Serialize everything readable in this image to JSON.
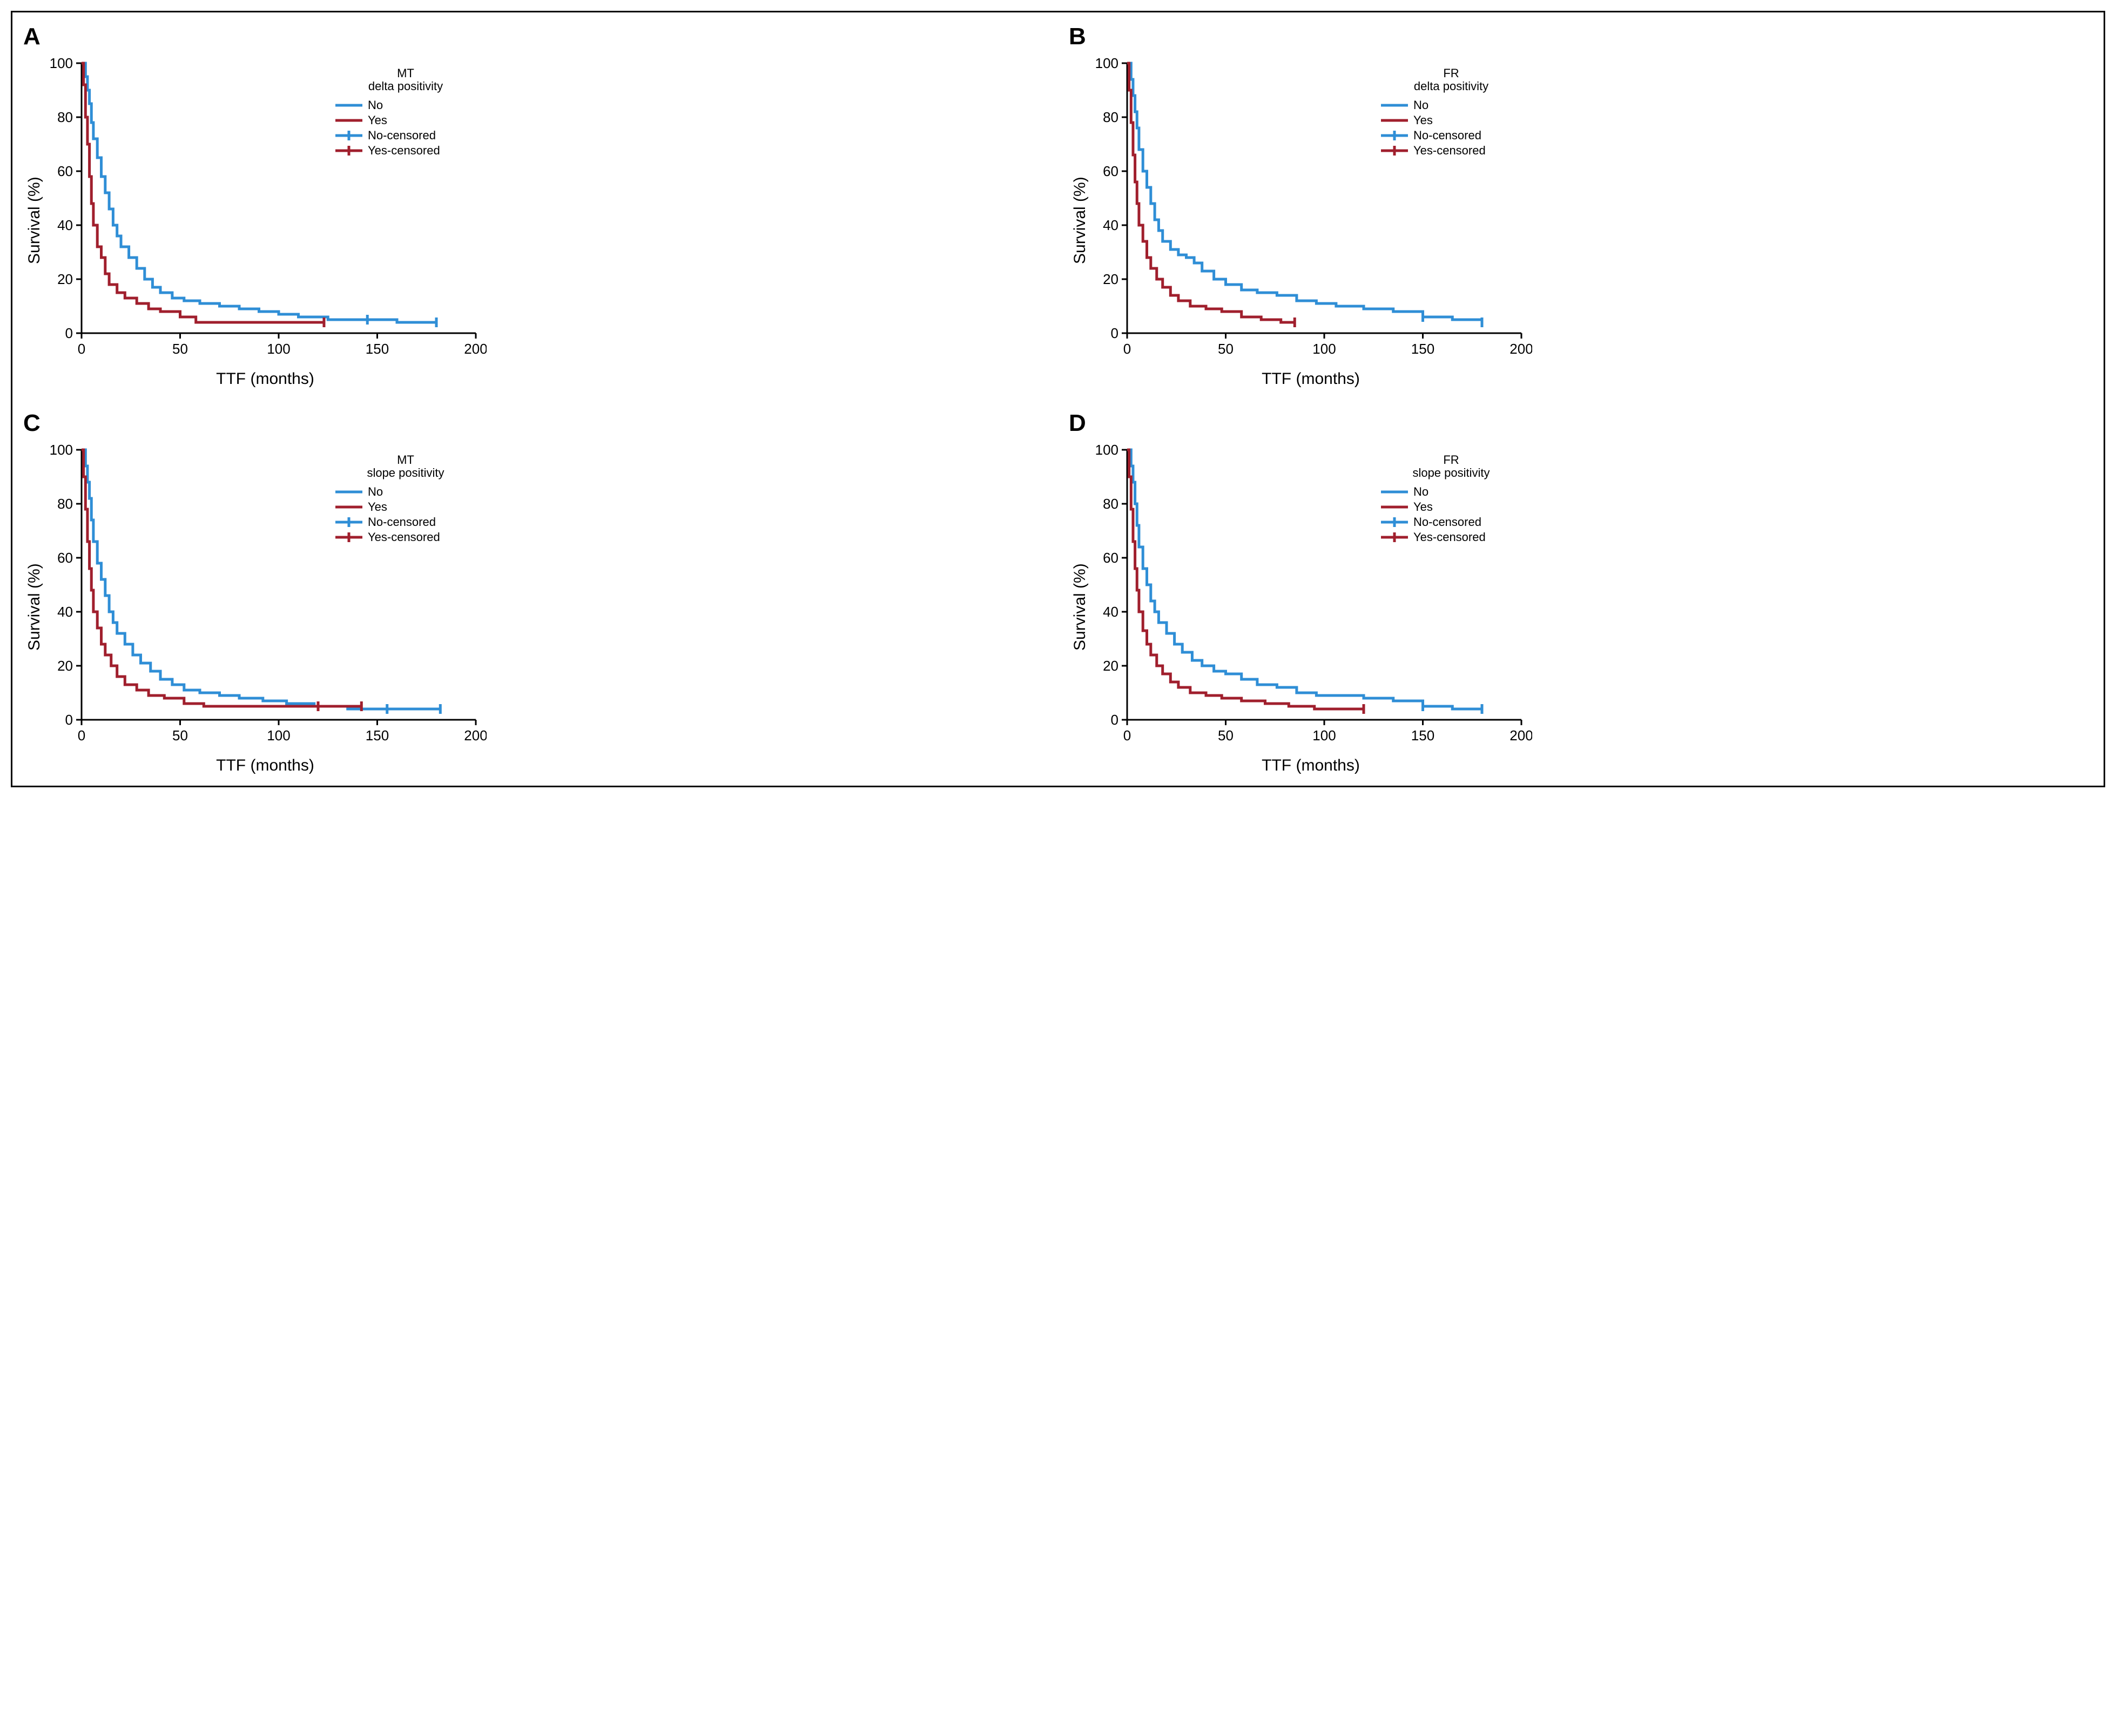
{
  "layout": {
    "grid": "2x2",
    "outer_border_color": "#000000",
    "background_color": "#ffffff"
  },
  "colors": {
    "no": "#2f8ed6",
    "yes": "#a01f2d",
    "axis": "#000000"
  },
  "axis": {
    "x_min": 0,
    "x_max": 200,
    "x_tick_step": 50,
    "y_min": 0,
    "y_max": 100,
    "y_tick_step": 20,
    "tick_fontsize": 26
  },
  "labels": {
    "y": "Survival (%)",
    "x": "TTF (months)",
    "label_fontsize": 30,
    "letter_fontsize": 44
  },
  "legend_common": {
    "items": [
      {
        "key": "no",
        "label": "No",
        "style": "line"
      },
      {
        "key": "yes",
        "label": "Yes",
        "style": "line"
      },
      {
        "key": "no_cens",
        "label": "No-censored",
        "style": "tick",
        "color_key": "no"
      },
      {
        "key": "yes_cens",
        "label": "Yes-censored",
        "style": "tick",
        "color_key": "yes"
      }
    ]
  },
  "panels": [
    {
      "id": "A",
      "legend_title": [
        "MT",
        "delta positivity"
      ],
      "series": {
        "no": {
          "steps": [
            [
              0,
              100
            ],
            [
              2,
              95
            ],
            [
              3,
              90
            ],
            [
              4,
              85
            ],
            [
              5,
              78
            ],
            [
              6,
              72
            ],
            [
              8,
              65
            ],
            [
              10,
              58
            ],
            [
              12,
              52
            ],
            [
              14,
              46
            ],
            [
              16,
              40
            ],
            [
              18,
              36
            ],
            [
              20,
              32
            ],
            [
              24,
              28
            ],
            [
              28,
              24
            ],
            [
              32,
              20
            ],
            [
              36,
              17
            ],
            [
              40,
              15
            ],
            [
              46,
              13
            ],
            [
              52,
              12
            ],
            [
              60,
              11
            ],
            [
              70,
              10
            ],
            [
              80,
              9
            ],
            [
              90,
              8
            ],
            [
              100,
              7
            ],
            [
              110,
              6
            ],
            [
              125,
              5
            ],
            [
              145,
              5
            ],
            [
              160,
              4
            ],
            [
              180,
              4
            ]
          ],
          "censor": [
            [
              145,
              5
            ],
            [
              180,
              4
            ]
          ]
        },
        "yes": {
          "steps": [
            [
              0,
              100
            ],
            [
              1,
              92
            ],
            [
              2,
              80
            ],
            [
              3,
              70
            ],
            [
              4,
              58
            ],
            [
              5,
              48
            ],
            [
              6,
              40
            ],
            [
              8,
              32
            ],
            [
              10,
              28
            ],
            [
              12,
              22
            ],
            [
              14,
              18
            ],
            [
              18,
              15
            ],
            [
              22,
              13
            ],
            [
              28,
              11
            ],
            [
              34,
              9
            ],
            [
              40,
              8
            ],
            [
              50,
              6
            ],
            [
              58,
              4
            ],
            [
              70,
              4
            ],
            [
              90,
              4
            ],
            [
              110,
              4
            ],
            [
              123,
              4
            ]
          ],
          "censor": [
            [
              123,
              4
            ]
          ]
        }
      }
    },
    {
      "id": "B",
      "legend_title": [
        "FR",
        "delta positivity"
      ],
      "series": {
        "no": {
          "steps": [
            [
              0,
              100
            ],
            [
              2,
              94
            ],
            [
              3,
              88
            ],
            [
              4,
              82
            ],
            [
              5,
              76
            ],
            [
              6,
              68
            ],
            [
              8,
              60
            ],
            [
              10,
              54
            ],
            [
              12,
              48
            ],
            [
              14,
              42
            ],
            [
              16,
              38
            ],
            [
              18,
              34
            ],
            [
              22,
              31
            ],
            [
              26,
              29
            ],
            [
              30,
              28
            ],
            [
              34,
              26
            ],
            [
              38,
              23
            ],
            [
              44,
              20
            ],
            [
              50,
              18
            ],
            [
              58,
              16
            ],
            [
              66,
              15
            ],
            [
              76,
              14
            ],
            [
              86,
              12
            ],
            [
              96,
              11
            ],
            [
              106,
              10
            ],
            [
              120,
              9
            ],
            [
              135,
              8
            ],
            [
              150,
              6
            ],
            [
              165,
              5
            ],
            [
              180,
              4
            ]
          ],
          "censor": [
            [
              150,
              6
            ],
            [
              180,
              4
            ]
          ]
        },
        "yes": {
          "steps": [
            [
              0,
              100
            ],
            [
              1,
              90
            ],
            [
              2,
              78
            ],
            [
              3,
              66
            ],
            [
              4,
              56
            ],
            [
              5,
              48
            ],
            [
              6,
              40
            ],
            [
              8,
              34
            ],
            [
              10,
              28
            ],
            [
              12,
              24
            ],
            [
              15,
              20
            ],
            [
              18,
              17
            ],
            [
              22,
              14
            ],
            [
              26,
              12
            ],
            [
              32,
              10
            ],
            [
              40,
              9
            ],
            [
              48,
              8
            ],
            [
              58,
              6
            ],
            [
              68,
              5
            ],
            [
              78,
              4
            ],
            [
              85,
              4
            ]
          ],
          "censor": [
            [
              85,
              4
            ]
          ]
        }
      }
    },
    {
      "id": "C",
      "legend_title": [
        "MT",
        "slope positivity"
      ],
      "series": {
        "no": {
          "steps": [
            [
              0,
              100
            ],
            [
              2,
              94
            ],
            [
              3,
              88
            ],
            [
              4,
              82
            ],
            [
              5,
              74
            ],
            [
              6,
              66
            ],
            [
              8,
              58
            ],
            [
              10,
              52
            ],
            [
              12,
              46
            ],
            [
              14,
              40
            ],
            [
              16,
              36
            ],
            [
              18,
              32
            ],
            [
              22,
              28
            ],
            [
              26,
              24
            ],
            [
              30,
              21
            ],
            [
              35,
              18
            ],
            [
              40,
              15
            ],
            [
              46,
              13
            ],
            [
              52,
              11
            ],
            [
              60,
              10
            ],
            [
              70,
              9
            ],
            [
              80,
              8
            ],
            [
              92,
              7
            ],
            [
              104,
              6
            ],
            [
              118,
              5
            ],
            [
              135,
              4
            ],
            [
              155,
              4
            ],
            [
              170,
              4
            ],
            [
              182,
              4
            ]
          ],
          "censor": [
            [
              155,
              4
            ],
            [
              182,
              4
            ]
          ]
        },
        "yes": {
          "steps": [
            [
              0,
              100
            ],
            [
              1,
              90
            ],
            [
              2,
              78
            ],
            [
              3,
              66
            ],
            [
              4,
              56
            ],
            [
              5,
              48
            ],
            [
              6,
              40
            ],
            [
              8,
              34
            ],
            [
              10,
              28
            ],
            [
              12,
              24
            ],
            [
              15,
              20
            ],
            [
              18,
              16
            ],
            [
              22,
              13
            ],
            [
              28,
              11
            ],
            [
              34,
              9
            ],
            [
              42,
              8
            ],
            [
              52,
              6
            ],
            [
              62,
              5
            ],
            [
              75,
              5
            ],
            [
              90,
              5
            ],
            [
              110,
              5
            ],
            [
              130,
              5
            ],
            [
              142,
              5
            ]
          ],
          "censor": [
            [
              120,
              5
            ],
            [
              142,
              5
            ]
          ]
        }
      }
    },
    {
      "id": "D",
      "legend_title": [
        "FR",
        "slope positivity"
      ],
      "series": {
        "no": {
          "steps": [
            [
              0,
              100
            ],
            [
              2,
              94
            ],
            [
              3,
              88
            ],
            [
              4,
              80
            ],
            [
              5,
              72
            ],
            [
              6,
              64
            ],
            [
              8,
              56
            ],
            [
              10,
              50
            ],
            [
              12,
              44
            ],
            [
              14,
              40
            ],
            [
              16,
              36
            ],
            [
              20,
              32
            ],
            [
              24,
              28
            ],
            [
              28,
              25
            ],
            [
              33,
              22
            ],
            [
              38,
              20
            ],
            [
              44,
              18
            ],
            [
              50,
              17
            ],
            [
              58,
              15
            ],
            [
              66,
              13
            ],
            [
              76,
              12
            ],
            [
              86,
              10
            ],
            [
              96,
              9
            ],
            [
              108,
              9
            ],
            [
              120,
              8
            ],
            [
              135,
              7
            ],
            [
              150,
              5
            ],
            [
              165,
              4
            ],
            [
              180,
              4
            ]
          ],
          "censor": [
            [
              150,
              5
            ],
            [
              180,
              4
            ]
          ]
        },
        "yes": {
          "steps": [
            [
              0,
              100
            ],
            [
              1,
              90
            ],
            [
              2,
              78
            ],
            [
              3,
              66
            ],
            [
              4,
              56
            ],
            [
              5,
              48
            ],
            [
              6,
              40
            ],
            [
              8,
              33
            ],
            [
              10,
              28
            ],
            [
              12,
              24
            ],
            [
              15,
              20
            ],
            [
              18,
              17
            ],
            [
              22,
              14
            ],
            [
              26,
              12
            ],
            [
              32,
              10
            ],
            [
              40,
              9
            ],
            [
              48,
              8
            ],
            [
              58,
              7
            ],
            [
              70,
              6
            ],
            [
              82,
              5
            ],
            [
              95,
              4
            ],
            [
              108,
              4
            ],
            [
              120,
              4
            ]
          ],
          "censor": [
            [
              120,
              4
            ]
          ]
        }
      }
    }
  ]
}
